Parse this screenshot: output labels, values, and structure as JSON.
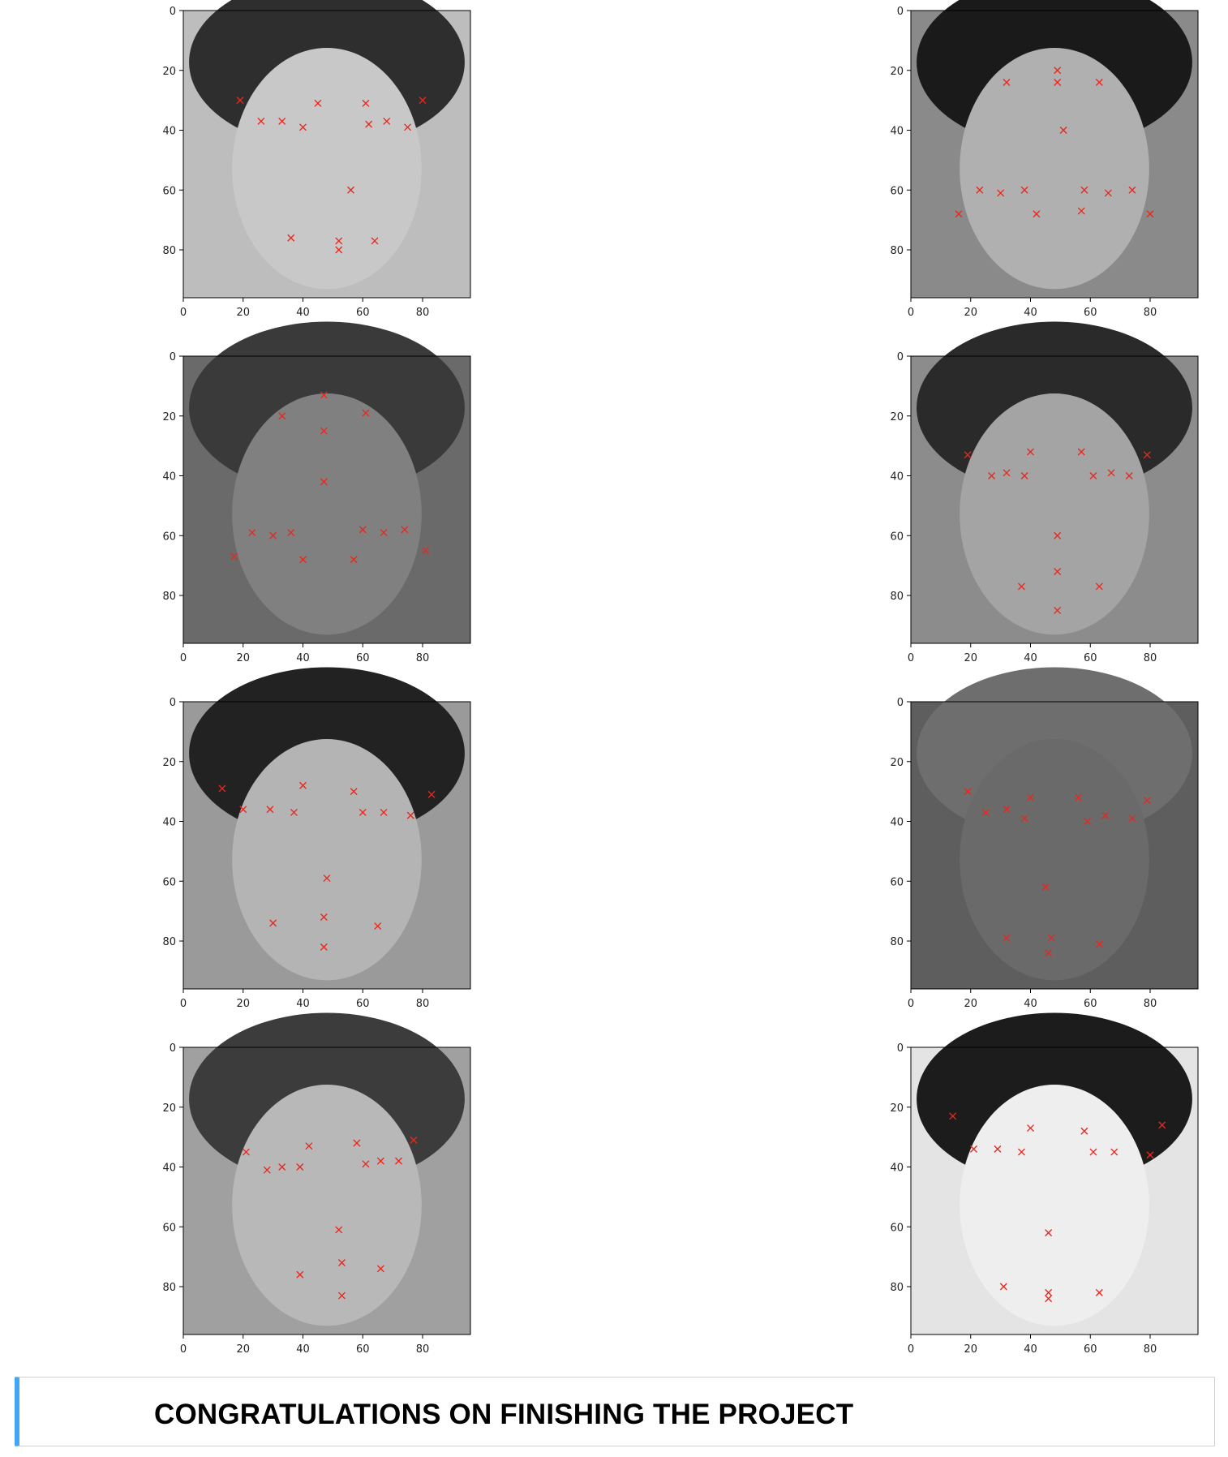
{
  "notebook": {
    "output": {
      "images": [
        {
          "name": "face-1",
          "shade": "#bdbdbd",
          "hair": "#2e2e2e",
          "skin": "#c8c8c8",
          "keypoints": [
            [
              19,
              30
            ],
            [
              26,
              37
            ],
            [
              33,
              37
            ],
            [
              40,
              39
            ],
            [
              45,
              31
            ],
            [
              61,
              31
            ],
            [
              62,
              38
            ],
            [
              68,
              37
            ],
            [
              75,
              39
            ],
            [
              80,
              30
            ],
            [
              56,
              60
            ],
            [
              36,
              76
            ],
            [
              52,
              77
            ],
            [
              64,
              77
            ],
            [
              52,
              80
            ]
          ]
        },
        {
          "name": "face-2",
          "shade": "#8a8a8a",
          "hair": "#1a1a1a",
          "skin": "#b0b0b0",
          "keypoints": [
            [
              49,
              20
            ],
            [
              32,
              24
            ],
            [
              63,
              24
            ],
            [
              49,
              24
            ],
            [
              51,
              40
            ],
            [
              23,
              60
            ],
            [
              30,
              61
            ],
            [
              38,
              60
            ],
            [
              58,
              60
            ],
            [
              66,
              61
            ],
            [
              74,
              60
            ],
            [
              16,
              68
            ],
            [
              42,
              68
            ],
            [
              57,
              67
            ],
            [
              80,
              68
            ]
          ]
        },
        {
          "name": "face-3",
          "shade": "#6a6a6a",
          "hair": "#3a3a3a",
          "skin": "#808080",
          "keypoints": [
            [
              47,
              13
            ],
            [
              33,
              20
            ],
            [
              61,
              19
            ],
            [
              47,
              25
            ],
            [
              47,
              42
            ],
            [
              23,
              59
            ],
            [
              30,
              60
            ],
            [
              36,
              59
            ],
            [
              60,
              58
            ],
            [
              67,
              59
            ],
            [
              74,
              58
            ],
            [
              17,
              67
            ],
            [
              40,
              68
            ],
            [
              57,
              68
            ],
            [
              81,
              65
            ]
          ]
        },
        {
          "name": "face-4",
          "shade": "#8c8c8c",
          "hair": "#2a2a2a",
          "skin": "#a4a4a4",
          "keypoints": [
            [
              19,
              33
            ],
            [
              27,
              40
            ],
            [
              32,
              39
            ],
            [
              38,
              40
            ],
            [
              40,
              32
            ],
            [
              57,
              32
            ],
            [
              61,
              40
            ],
            [
              67,
              39
            ],
            [
              73,
              40
            ],
            [
              79,
              33
            ],
            [
              49,
              60
            ],
            [
              49,
              72
            ],
            [
              37,
              77
            ],
            [
              63,
              77
            ],
            [
              49,
              85
            ]
          ]
        },
        {
          "name": "face-5",
          "shade": "#9a9a9a",
          "hair": "#222222",
          "skin": "#b4b4b4",
          "keypoints": [
            [
              13,
              29
            ],
            [
              20,
              36
            ],
            [
              29,
              36
            ],
            [
              37,
              37
            ],
            [
              40,
              28
            ],
            [
              57,
              30
            ],
            [
              60,
              37
            ],
            [
              67,
              37
            ],
            [
              76,
              38
            ],
            [
              83,
              31
            ],
            [
              48,
              59
            ],
            [
              30,
              74
            ],
            [
              47,
              72
            ],
            [
              65,
              75
            ],
            [
              47,
              82
            ]
          ]
        },
        {
          "name": "face-6",
          "shade": "#5e5e5e",
          "hair": "#6e6e6e",
          "skin": "#6a6a6a",
          "keypoints": [
            [
              19,
              30
            ],
            [
              25,
              37
            ],
            [
              32,
              36
            ],
            [
              38,
              39
            ],
            [
              40,
              32
            ],
            [
              56,
              32
            ],
            [
              59,
              40
            ],
            [
              65,
              38
            ],
            [
              74,
              39
            ],
            [
              79,
              33
            ],
            [
              45,
              62
            ],
            [
              32,
              79
            ],
            [
              47,
              79
            ],
            [
              63,
              81
            ],
            [
              46,
              84
            ]
          ]
        },
        {
          "name": "face-7",
          "shade": "#a0a0a0",
          "hair": "#3c3c3c",
          "skin": "#b8b8b8",
          "keypoints": [
            [
              21,
              35
            ],
            [
              28,
              41
            ],
            [
              33,
              40
            ],
            [
              39,
              40
            ],
            [
              42,
              33
            ],
            [
              58,
              32
            ],
            [
              61,
              39
            ],
            [
              66,
              38
            ],
            [
              72,
              38
            ],
            [
              77,
              31
            ],
            [
              52,
              61
            ],
            [
              53,
              72
            ],
            [
              39,
              76
            ],
            [
              66,
              74
            ],
            [
              53,
              83
            ]
          ]
        },
        {
          "name": "face-8",
          "shade": "#e4e4e4",
          "hair": "#1c1c1c",
          "skin": "#eeeeee",
          "keypoints": [
            [
              14,
              23
            ],
            [
              21,
              34
            ],
            [
              29,
              34
            ],
            [
              37,
              35
            ],
            [
              40,
              27
            ],
            [
              58,
              28
            ],
            [
              61,
              35
            ],
            [
              68,
              35
            ],
            [
              80,
              36
            ],
            [
              84,
              26
            ],
            [
              46,
              62
            ],
            [
              31,
              80
            ],
            [
              46,
              82
            ],
            [
              63,
              82
            ],
            [
              46,
              84
            ]
          ]
        }
      ],
      "axis": {
        "ticks": [
          0,
          20,
          40,
          60,
          80
        ],
        "labels": [
          "0",
          "20",
          "40",
          "60",
          "80"
        ],
        "max": 96
      },
      "marker_color": "#e8281e"
    },
    "markdown": {
      "heading": "CONGRATULATIONS ON FINISHING THE PROJECT"
    }
  }
}
